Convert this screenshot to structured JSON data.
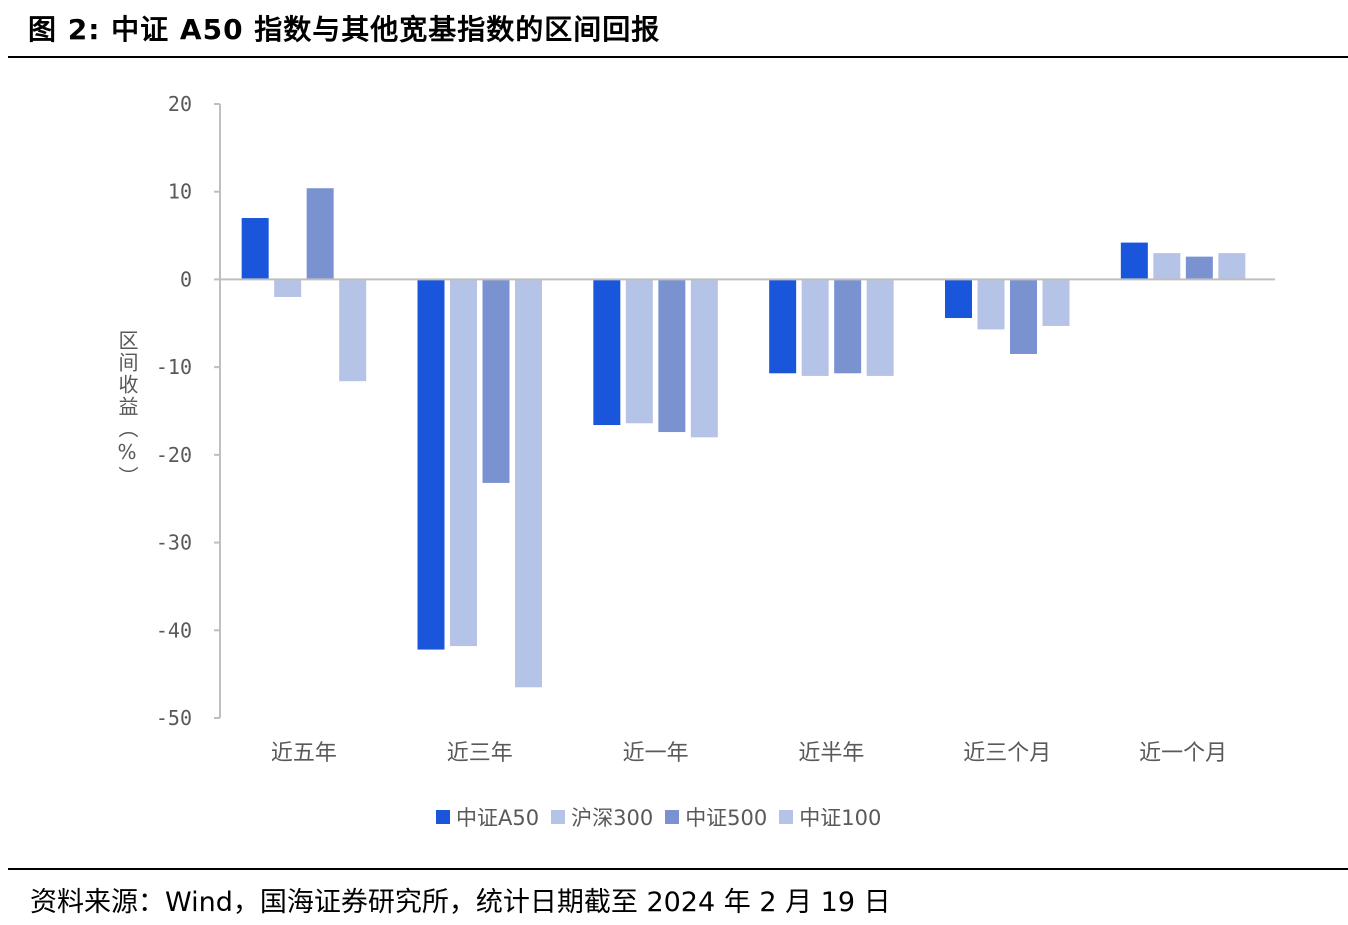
{
  "figure_title": "图 2:  中证 A50 指数与其他宽基指数的区间回报",
  "source_note": "资料来源：Wind，国海证券研究所，统计日期截至 2024 年 2 月 19 日",
  "colors": {
    "axis_text": "#595959",
    "axis_line": "#bfbfbf"
  },
  "chart_data": {
    "type": "bar",
    "title": "",
    "xlabel": "",
    "ylabel": "区间收益（%）",
    "ylim": [
      -50,
      20
    ],
    "yticks": [
      20,
      10,
      0,
      -10,
      -20,
      -30,
      -40,
      -50
    ],
    "ytick_labels": [
      "20",
      "10",
      "0",
      "-10",
      "-20",
      "-30",
      "-40",
      "-50"
    ],
    "grid": false,
    "legend_position": "bottom",
    "categories": [
      "近五年",
      "近三年",
      "近一年",
      "近半年",
      "近三个月",
      "近一个月"
    ],
    "series": [
      {
        "name": "中证A50",
        "color": "#1a56db",
        "values": [
          7.0,
          -42.2,
          -16.6,
          -10.7,
          -4.4,
          4.2
        ]
      },
      {
        "name": "沪深300",
        "color": "#b4c3e6",
        "values": [
          -2.0,
          -41.8,
          -16.4,
          -11.0,
          -5.7,
          3.0
        ]
      },
      {
        "name": "中证500",
        "color": "#7a93d0",
        "values": [
          10.4,
          -23.2,
          -17.4,
          -10.7,
          -8.5,
          2.6
        ]
      },
      {
        "name": "中证100",
        "color": "#b4c3e6",
        "values": [
          -11.6,
          -46.5,
          -18.0,
          -11.0,
          -5.3,
          3.0
        ]
      }
    ]
  }
}
